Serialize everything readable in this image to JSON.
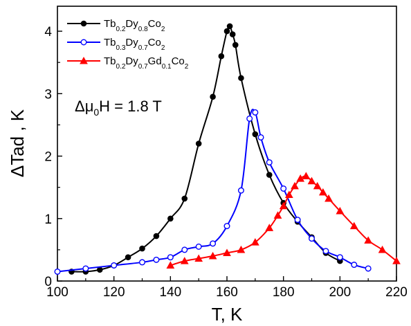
{
  "chart_data": {
    "type": "line",
    "xlabel": "T, K",
    "ylabel": "ΔTad , K",
    "xlim": [
      100,
      220
    ],
    "ylim": [
      0,
      4.4
    ],
    "x_ticks": [
      "100",
      "120",
      "140",
      "160",
      "180",
      "200",
      "220"
    ],
    "y_ticks": [
      "0",
      "1",
      "2",
      "3",
      "4"
    ],
    "annotation": "Δμ0H = 1.8 T",
    "legend_position": "top-left",
    "series": [
      {
        "name": "Tb0.2Dy0.8Co2",
        "color": "#000000",
        "marker": "filled-circle",
        "points": [
          [
            105,
            0.15
          ],
          [
            110,
            0.15
          ],
          [
            115,
            0.18
          ],
          [
            120,
            0.25
          ],
          [
            125,
            0.38
          ],
          [
            130,
            0.52
          ],
          [
            135,
            0.72
          ],
          [
            140,
            1.0
          ],
          [
            145,
            1.32
          ],
          [
            150,
            2.2
          ],
          [
            155,
            2.95
          ],
          [
            158,
            3.6
          ],
          [
            160,
            4.0
          ],
          [
            161,
            4.08
          ],
          [
            162,
            3.95
          ],
          [
            163,
            3.78
          ],
          [
            165,
            3.25
          ],
          [
            170,
            2.35
          ],
          [
            175,
            1.7
          ],
          [
            180,
            1.25
          ],
          [
            185,
            0.95
          ],
          [
            190,
            0.7
          ],
          [
            195,
            0.45
          ],
          [
            200,
            0.32
          ]
        ]
      },
      {
        "name": "Tb0.3Dy0.7Co2",
        "color": "#0000ff",
        "marker": "open-circle",
        "points": [
          [
            100,
            0.15
          ],
          [
            110,
            0.2
          ],
          [
            120,
            0.25
          ],
          [
            130,
            0.3
          ],
          [
            135,
            0.34
          ],
          [
            140,
            0.38
          ],
          [
            145,
            0.5
          ],
          [
            150,
            0.55
          ],
          [
            155,
            0.6
          ],
          [
            160,
            0.88
          ],
          [
            165,
            1.45
          ],
          [
            168,
            2.6
          ],
          [
            170,
            2.7
          ],
          [
            172,
            2.3
          ],
          [
            175,
            1.9
          ],
          [
            180,
            1.48
          ],
          [
            185,
            0.98
          ],
          [
            190,
            0.68
          ],
          [
            195,
            0.48
          ],
          [
            200,
            0.38
          ],
          [
            205,
            0.26
          ],
          [
            210,
            0.2
          ]
        ]
      },
      {
        "name": "Tb0.2Dy0.7Gd0.1Co2",
        "color": "#ff0000",
        "marker": "filled-triangle",
        "points": [
          [
            140,
            0.25
          ],
          [
            145,
            0.32
          ],
          [
            150,
            0.36
          ],
          [
            155,
            0.4
          ],
          [
            160,
            0.45
          ],
          [
            165,
            0.5
          ],
          [
            170,
            0.62
          ],
          [
            175,
            0.85
          ],
          [
            178,
            1.05
          ],
          [
            180,
            1.2
          ],
          [
            182,
            1.38
          ],
          [
            184,
            1.52
          ],
          [
            186,
            1.64
          ],
          [
            188,
            1.68
          ],
          [
            190,
            1.6
          ],
          [
            192,
            1.52
          ],
          [
            194,
            1.42
          ],
          [
            196,
            1.32
          ],
          [
            200,
            1.12
          ],
          [
            205,
            0.88
          ],
          [
            210,
            0.65
          ],
          [
            215,
            0.5
          ],
          [
            220,
            0.32
          ]
        ]
      }
    ]
  }
}
